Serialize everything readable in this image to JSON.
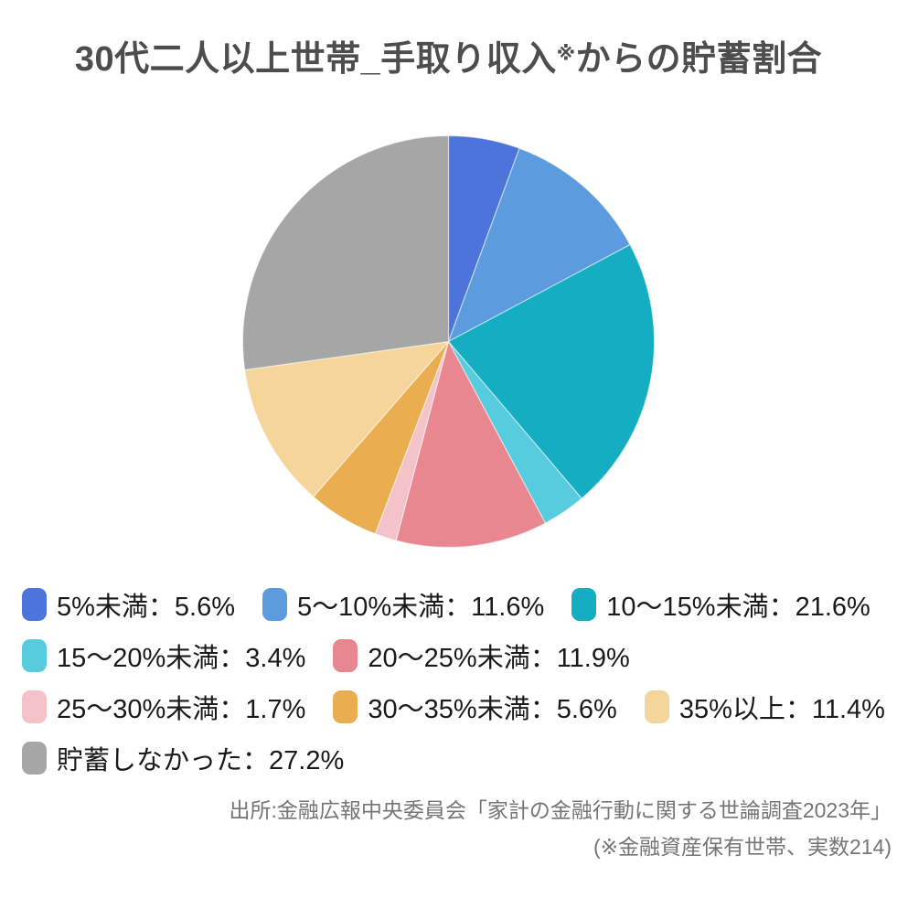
{
  "page": {
    "background": "#FFFFFF"
  },
  "title": {
    "prefix": "30代二人以上世帯_手取り収入",
    "note_mark": "※",
    "suffix": "からの貯蓄割合",
    "color": "#4D4D4D"
  },
  "chart_data": {
    "type": "pie",
    "title": "30代二人以上世帯_手取り収入※からの貯蓄割合",
    "unit": "%",
    "start_angle": "12-oclock",
    "direction": "clockwise",
    "legend_position": "bottom",
    "legend_separator": "：",
    "value_suffix": "%",
    "slices": [
      {
        "label": "5%未満",
        "value": 5.6,
        "color": "#4D74DB"
      },
      {
        "label": "5〜10%未満",
        "value": 11.6,
        "color": "#5C9CDE"
      },
      {
        "label": "10〜15%未満",
        "value": 21.6,
        "color": "#14ADC2"
      },
      {
        "label": "15〜20%未満",
        "value": 3.4,
        "color": "#57CCDF"
      },
      {
        "label": "20〜25%未満",
        "value": 11.9,
        "color": "#E98790"
      },
      {
        "label": "25〜30%未満",
        "value": 1.7,
        "color": "#F3C3C9"
      },
      {
        "label": "30〜35%未満",
        "value": 5.6,
        "color": "#EAAD50"
      },
      {
        "label": "35%以上",
        "value": 11.4,
        "color": "#F6D59A"
      },
      {
        "label": "貯蓄しなかった",
        "value": 27.2,
        "color": "#A6A6A6"
      }
    ]
  },
  "footer": {
    "source_line1": "出所:金融広報中央委員会「家計の金融行動に関する世論調査2023年」",
    "source_line2": "(※金融資産保有世帯、実数214)",
    "color": "#757575"
  }
}
